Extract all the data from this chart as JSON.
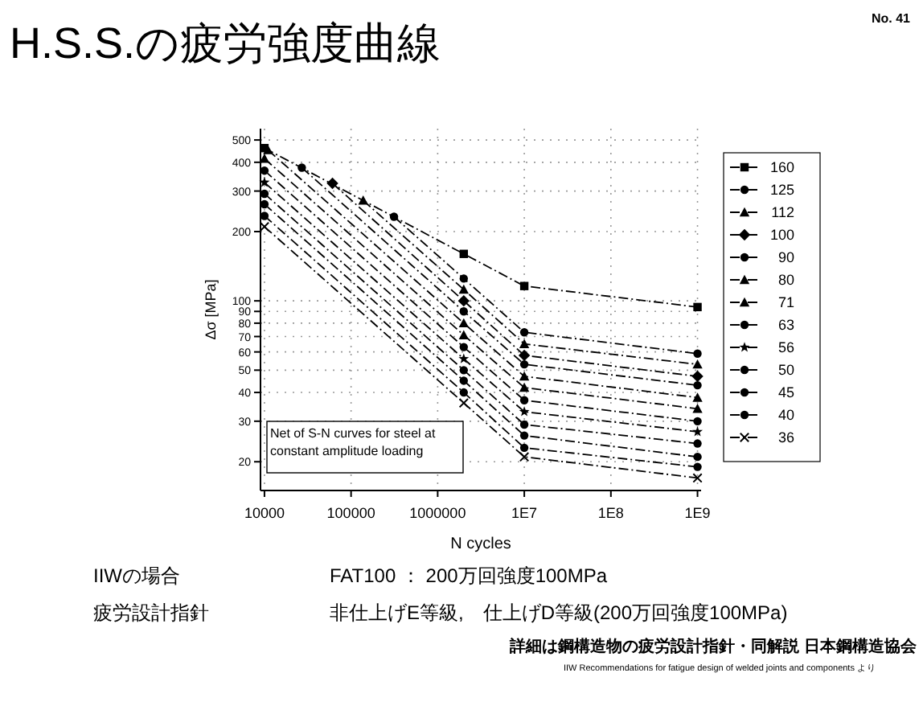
{
  "chart_data": {
    "type": "line",
    "title": "H.S.S.の疲労強度曲線",
    "xlabel": "N cycles",
    "ylabel": "Δσ [MPa]",
    "log": "xy",
    "xlim": [
      9000,
      1100000000
    ],
    "ylim": [
      15,
      560
    ],
    "xticks": [
      10000,
      100000,
      1000000,
      {
        "value": 10000000,
        "label": "1E7"
      },
      {
        "value": 100000000,
        "label": "1E8"
      },
      {
        "value": 1000000000,
        "label": "1E9"
      }
    ],
    "yticks": [
      20,
      30,
      40,
      50,
      60,
      70,
      80,
      90,
      100,
      200,
      300,
      400,
      500
    ],
    "grid": true,
    "legend": "right",
    "line_style": "dashed",
    "series": [
      {
        "name": "160",
        "color": "#000000",
        "marker": "square",
        "x": [
          10000,
          2000000,
          10000000,
          1000000000
        ],
        "values": [
          461,
          160,
          116,
          94
        ]
      },
      {
        "name": "125",
        "color": "#000000",
        "marker": "circle",
        "x": [
          313000,
          2000000,
          10000000,
          1000000000
        ],
        "values": [
          232,
          125,
          73,
          59
        ]
      },
      {
        "name": "112",
        "color": "#000000",
        "marker": "triangle",
        "x": [
          138000,
          2000000,
          10000000,
          1000000000
        ],
        "values": [
          273,
          112,
          65,
          53
        ]
      },
      {
        "name": "100",
        "color": "#000000",
        "marker": "diamond",
        "x": [
          61000,
          2000000,
          10000000,
          1000000000
        ],
        "values": [
          324,
          100,
          58,
          47
        ]
      },
      {
        "name": "90",
        "color": "#000000",
        "marker": "circle",
        "x": [
          27000,
          2000000,
          10000000,
          1000000000
        ],
        "values": [
          379,
          90,
          53,
          43
        ]
      },
      {
        "name": "80",
        "color": "#000000",
        "marker": "triangle",
        "x": [
          11000,
          2000000,
          10000000,
          1000000000
        ],
        "values": [
          452,
          80,
          47,
          38
        ]
      },
      {
        "name": "71",
        "color": "#000000",
        "marker": "triangle",
        "x": [
          10000,
          2000000,
          10000000,
          1000000000
        ],
        "values": [
          415,
          71,
          42,
          34
        ]
      },
      {
        "name": "63",
        "color": "#000000",
        "marker": "circle",
        "x": [
          10000,
          2000000,
          10000000,
          1000000000
        ],
        "values": [
          368,
          63,
          37,
          30
        ]
      },
      {
        "name": "56",
        "color": "#000000",
        "marker": "star",
        "x": [
          10000,
          2000000,
          10000000,
          1000000000
        ],
        "values": [
          327,
          56,
          33,
          27
        ]
      },
      {
        "name": "50",
        "color": "#000000",
        "marker": "circle",
        "x": [
          10000,
          2000000,
          10000000,
          1000000000
        ],
        "values": [
          292,
          50,
          29,
          24
        ]
      },
      {
        "name": "45",
        "color": "#000000",
        "marker": "circle",
        "x": [
          10000,
          2000000,
          10000000,
          1000000000
        ],
        "values": [
          263,
          45,
          26,
          21
        ]
      },
      {
        "name": "40",
        "color": "#000000",
        "marker": "circle",
        "x": [
          10000,
          2000000,
          10000000,
          1000000000
        ],
        "values": [
          234,
          40,
          23,
          19
        ]
      },
      {
        "name": "36",
        "color": "#000000",
        "marker": "cross",
        "x": [
          10000,
          2000000,
          10000000,
          1000000000
        ],
        "values": [
          210,
          36,
          21,
          17
        ]
      }
    ],
    "annotations": [
      "Net of S-N curves for steel at constant amplitude loading",
      "No. 41",
      "IIWの場合",
      "FAT100 ： 200万回強度100MPa",
      "疲労設計指針",
      "非仕上げE等級,　仕上げD等級(200万回強度100MPa)",
      "詳細は鋼構造物の疲労設計指針・同解説 日本鋼構造協会",
      "IIW Recommendations for fatigue design of welded joints and components より"
    ]
  }
}
